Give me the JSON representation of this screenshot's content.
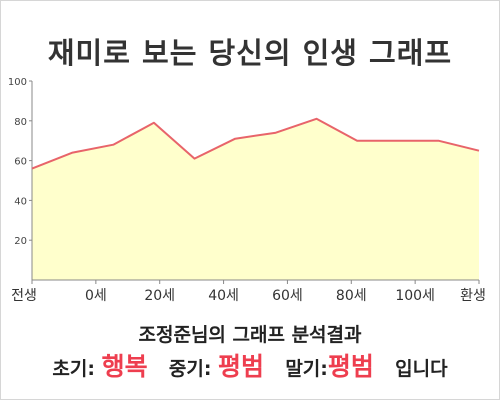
{
  "title": "재미로 보는 당신의 인생 그래프",
  "chart_data": {
    "type": "area",
    "title": "재미로 보는 당신의 인생 그래프",
    "x_labels": [
      "전생",
      "0세",
      "20세",
      "40세",
      "60세",
      "80세",
      "100세",
      "환생"
    ],
    "y_ticks": [
      20,
      40,
      60,
      80,
      100
    ],
    "ylim": [
      0,
      100
    ],
    "grid": false,
    "series": [
      {
        "values": [
          56,
          64,
          68,
          79,
          61,
          71,
          74,
          81,
          70,
          70,
          70,
          65
        ]
      }
    ],
    "colors": {
      "line": "#e8646a",
      "fill": "#ffffcc",
      "axis": "#888888"
    }
  },
  "result": {
    "title": "조정준님의 그래프 분석결과",
    "early_label": "초기:",
    "early_value": "행복",
    "middle_label": "중기:",
    "middle_value": "평범",
    "late_label": "말기:",
    "late_value": "평범",
    "suffix": "입니다"
  }
}
